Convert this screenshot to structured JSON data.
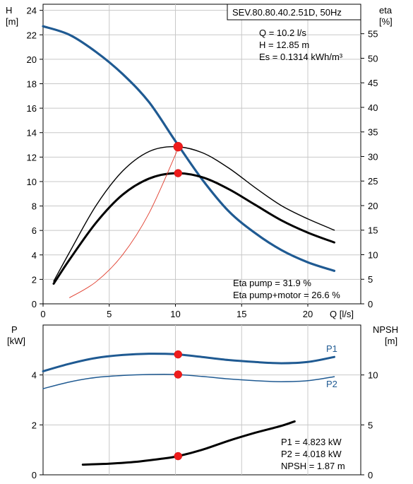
{
  "chart_data": [
    {
      "type": "line",
      "title": "SEV.80.80.40.2.51D, 50Hz",
      "xlabel": "Q [l/s]",
      "ylabel_left_name": "H",
      "ylabel_left_unit": "[m]",
      "ylabel_right_name": "eta",
      "ylabel_right_unit": "[%]",
      "xlim": [
        0,
        24
      ],
      "ylim_left": [
        0,
        24.5
      ],
      "ylim_right": [
        0,
        61
      ],
      "grid": true,
      "x_ticks": [
        "0",
        "5",
        "10",
        "15",
        "20"
      ],
      "y_left_ticks": [
        "0",
        "2",
        "4",
        "6",
        "8",
        "10",
        "12",
        "14",
        "16",
        "18",
        "20",
        "22",
        "24"
      ],
      "y_right_ticks": [
        "0",
        "5",
        "10",
        "15",
        "20",
        "25",
        "30",
        "35",
        "40",
        "45",
        "50",
        "55"
      ],
      "info_lines": [
        "Q = 10.2 l/s",
        "H = 12.85 m",
        "Es = 0.1314 kWh/m³"
      ],
      "eta_lines": [
        "Eta pump = 31.9 %",
        "Eta pump+motor = 26.6 %"
      ],
      "series": [
        {
          "axis": "left",
          "color": "#1f5a92",
          "width": 3.2,
          "x": [
            0,
            2,
            4,
            6,
            8,
            10,
            12,
            14,
            16,
            18,
            20,
            22
          ],
          "values": [
            22.7,
            22.0,
            20.6,
            18.8,
            16.5,
            13.3,
            10.2,
            7.6,
            5.8,
            4.4,
            3.4,
            2.7
          ]
        },
        {
          "axis": "right",
          "color": "#000000",
          "width": 1.4,
          "x": [
            0.8,
            2,
            4,
            6,
            8,
            10,
            12,
            14,
            16,
            18,
            20,
            22
          ],
          "values": [
            4.6,
            10.5,
            20.0,
            27.0,
            31.0,
            32.0,
            30.8,
            27.7,
            23.7,
            20.0,
            17.3,
            15.0
          ]
        },
        {
          "axis": "right",
          "color": "#000000",
          "width": 3,
          "x": [
            0.8,
            2,
            4,
            6,
            8,
            10,
            12,
            14,
            16,
            18,
            20,
            22
          ],
          "values": [
            4.1,
            9.0,
            16.5,
            22.2,
            25.5,
            26.6,
            25.8,
            23.4,
            20.2,
            17.0,
            14.5,
            12.5
          ]
        },
        {
          "axis": "left",
          "color": "#e03a2a",
          "width": 0.9,
          "x": [
            2,
            4,
            6,
            8,
            10,
            10.2
          ],
          "values": [
            0.5,
            1.8,
            4.0,
            7.4,
            12.2,
            12.85
          ]
        }
      ],
      "markers": [
        {
          "x": 10.2,
          "y": 12.85,
          "axis": "left",
          "r": 6.5
        },
        {
          "x": 10.2,
          "y": 26.6,
          "axis": "right",
          "r": 5.5
        }
      ]
    },
    {
      "type": "line",
      "xlabel": "",
      "ylabel_left_name": "P",
      "ylabel_left_unit": "[kW]",
      "ylabel_right_name": "NPSH",
      "ylabel_right_unit": "[m]",
      "xlim": [
        0,
        24
      ],
      "ylim_left": [
        0,
        6
      ],
      "ylim_right": [
        0,
        15
      ],
      "grid": true,
      "y_left_ticks": [
        "0",
        "2",
        "4"
      ],
      "y_right_ticks": [
        "0",
        "5",
        "10"
      ],
      "info_lines": [
        "P1 = 4.823 kW",
        "P2 = 4.018 kW",
        "NPSH = 1.87 m"
      ],
      "series": [
        {
          "name": "P1",
          "axis": "left",
          "color": "#1f5a92",
          "width": 3,
          "x": [
            0,
            2,
            4,
            6,
            8,
            10,
            12,
            14,
            16,
            18,
            20,
            22
          ],
          "values": [
            4.15,
            4.45,
            4.68,
            4.8,
            4.85,
            4.83,
            4.72,
            4.6,
            4.52,
            4.47,
            4.52,
            4.72
          ]
        },
        {
          "name": "P2",
          "axis": "left",
          "color": "#1f5a92",
          "width": 1.5,
          "x": [
            0,
            2,
            4,
            6,
            8,
            10,
            12,
            14,
            16,
            18,
            20,
            22
          ],
          "values": [
            3.45,
            3.72,
            3.9,
            3.98,
            4.02,
            4.02,
            3.94,
            3.84,
            3.77,
            3.73,
            3.77,
            3.93
          ]
        },
        {
          "axis": "right",
          "color": "#000000",
          "width": 3,
          "x": [
            3,
            5,
            7,
            9,
            10.2,
            12,
            14,
            16,
            18,
            19
          ],
          "values": [
            1.02,
            1.12,
            1.3,
            1.62,
            1.87,
            2.5,
            3.4,
            4.2,
            4.9,
            5.35
          ]
        }
      ],
      "markers": [
        {
          "x": 10.2,
          "y": 4.823,
          "axis": "left",
          "r": 5.5
        },
        {
          "x": 10.2,
          "y": 4.018,
          "axis": "left",
          "r": 5.5
        },
        {
          "x": 10.2,
          "y": 1.87,
          "axis": "right",
          "r": 5.5
        }
      ]
    }
  ]
}
